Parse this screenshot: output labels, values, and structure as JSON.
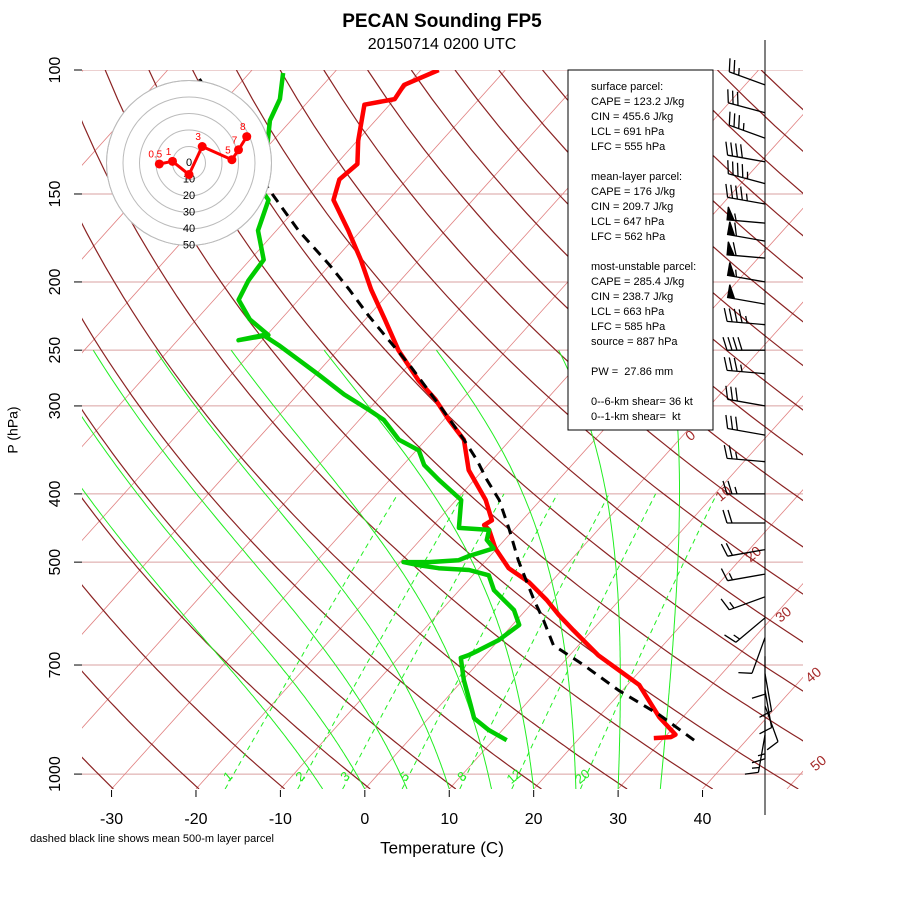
{
  "chart_data": {
    "type": "skewt",
    "title": "PECAN Sounding FP5",
    "subtitle": "20150714 0200 UTC",
    "xlabel": "Temperature (C)",
    "ylabel": "P (hPa)",
    "note": "dashed black line shows mean 500-m layer parcel",
    "xlim": [
      -33.5,
      51.9
    ],
    "ylim": [
      1050,
      100
    ],
    "yscale": "log",
    "xticks": [
      -30,
      -20,
      -10,
      0,
      10,
      20,
      30,
      40
    ],
    "yticks": [
      100,
      150,
      200,
      250,
      300,
      400,
      500,
      700,
      1000
    ],
    "isotherm_labels": [
      0,
      10,
      20,
      30,
      40,
      50
    ],
    "mixing_ratios": [
      1,
      2,
      3,
      5,
      8,
      12,
      20
    ],
    "series": [
      {
        "color": "#ff0000",
        "dash": false,
        "pressure": [
          889,
          886,
          879,
          830,
          747,
          678,
          625,
          594,
          566,
          534,
          510,
          478,
          450,
          443,
          436,
          408,
          370,
          335,
          314,
          294,
          276,
          250,
          226,
          205,
          186,
          169,
          153,
          143,
          136,
          126,
          112,
          110,
          105,
          100
        ],
        "values": [
          28.8,
          30.7,
          31.0,
          27.2,
          21.4,
          13.4,
          7.8,
          4.4,
          1.4,
          -2.6,
          -6.5,
          -10.2,
          -12.9,
          -14.0,
          -13.6,
          -16.5,
          -21.7,
          -25.5,
          -29.4,
          -33.1,
          -37.2,
          -42.8,
          -47.7,
          -52.5,
          -56.9,
          -61.5,
          -66.5,
          -68.0,
          -67.5,
          -69.9,
          -73.0,
          -70.0,
          -70.4,
          -67.9
        ]
      },
      {
        "color": "#00cc00",
        "dash": false,
        "pressure": [
          895,
          866,
          833,
          798,
          735,
          684,
          678,
          667,
          645,
          614,
          585,
          548,
          522,
          513,
          510,
          505,
          500,
          500,
          497,
          490,
          478,
          465,
          450,
          447,
          408,
          382,
          364,
          347,
          335,
          314,
          304,
          289,
          271,
          258,
          246,
          238,
          242,
          238,
          226,
          212,
          199,
          186,
          169,
          153,
          143,
          130,
          118,
          110,
          101
        ],
        "values": [
          11.6,
          8.4,
          5.4,
          3.6,
          0.1,
          -2.6,
          -2.0,
          -1.3,
          0.0,
          0.8,
          -1.4,
          -5.9,
          -8.1,
          -11.0,
          -14.8,
          -17.5,
          -19.6,
          -16.6,
          -13.3,
          -12.5,
          -10.4,
          -12.1,
          -12.9,
          -16.7,
          -19.4,
          -24.2,
          -27.5,
          -29.7,
          -33.2,
          -37.1,
          -39.9,
          -44.5,
          -49.6,
          -53.6,
          -57.5,
          -60.4,
          -62.8,
          -59.8,
          -63.7,
          -67.1,
          -68.0,
          -68.4,
          -72.2,
          -74.2,
          -78.1,
          -79.7,
          -82.5,
          -83.6,
          -86.0
        ]
      },
      {
        "color": "#000000",
        "dash": true,
        "pressure": [
          895,
          824,
          760,
          700,
          656,
          605,
          566,
          530,
          497,
          450,
          408,
          382,
          358,
          335,
          309,
          285,
          262,
          242,
          223,
          205,
          189,
          169,
          148,
          102
        ],
        "values": [
          33.8,
          27.0,
          19.5,
          12.7,
          7.0,
          3.2,
          -0.1,
          -3.2,
          -6.2,
          -10.5,
          -14.9,
          -18.5,
          -21.8,
          -25.5,
          -30.2,
          -35.0,
          -40.0,
          -45.0,
          -50.1,
          -55.1,
          -60.1,
          -67.4,
          -75.2,
          -95.8
        ]
      }
    ],
    "hodograph": {
      "rings": [
        0,
        10,
        20,
        30,
        40,
        50
      ],
      "color": "#ff0000",
      "u": [
        -18,
        -10,
        0,
        8,
        26,
        30,
        35
      ],
      "v": [
        -0.6,
        1,
        -7,
        10,
        2,
        8,
        16
      ],
      "labels": [
        "0.5",
        "1",
        null,
        "3",
        "5",
        "7",
        "8"
      ]
    },
    "wind_barbs": {
      "pressure": [
        105,
        115,
        125,
        135,
        145,
        155,
        165,
        175,
        185,
        200,
        215,
        230,
        250,
        270,
        300,
        330,
        360,
        400,
        440,
        480,
        520,
        560,
        600,
        640,
        680,
        720,
        760,
        800,
        840,
        880
      ],
      "speed": [
        25,
        30,
        35,
        40,
        45,
        45,
        55,
        60,
        60,
        55,
        50,
        45,
        40,
        35,
        30,
        30,
        25,
        25,
        20,
        20,
        15,
        15,
        15,
        10,
        10,
        10,
        10,
        10,
        15,
        15
      ],
      "direction": [
        290,
        285,
        290,
        280,
        285,
        280,
        275,
        280,
        275,
        280,
        280,
        275,
        270,
        275,
        280,
        280,
        275,
        270,
        270,
        260,
        260,
        250,
        230,
        200,
        180,
        170,
        170,
        160,
        180,
        190
      ]
    },
    "info_box": [
      [
        "surface parcel:",
        "CAPE = 123.2 J/kg",
        "CIN = 455.6 J/kg",
        "LCL = 691 hPa",
        "LFC = 555 hPa"
      ],
      [
        "mean-layer parcel:",
        "CAPE = 176 J/kg",
        "CIN = 209.7 J/kg",
        "LCL = 647 hPa",
        "LFC = 562 hPa"
      ],
      [
        "most-unstable parcel:",
        "CAPE = 285.4 J/kg",
        "CIN = 238.7 J/kg",
        "LCL = 663 hPa",
        "LFC = 585 hPa",
        "source = 887 hPa"
      ],
      [
        "PW =  27.86 mm"
      ],
      [
        "0--6-km shear= 36 kt",
        "0--1-km shear=  kt"
      ]
    ]
  }
}
